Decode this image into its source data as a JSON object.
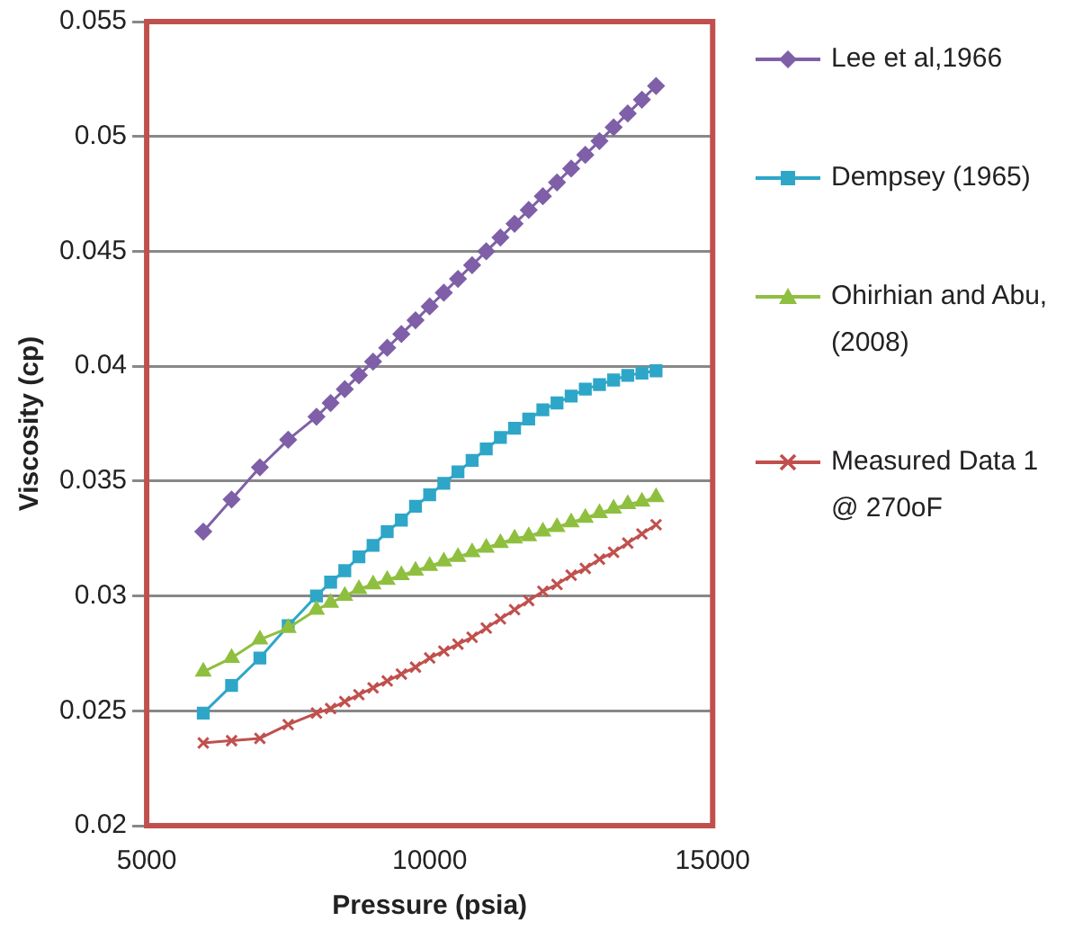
{
  "chart_data": {
    "type": "line",
    "xlabel": "Pressure (psia)",
    "ylabel": "Viscosity (cp)",
    "x": [
      6000,
      6500,
      7000,
      7500,
      8000,
      8250,
      8500,
      8750,
      9000,
      9250,
      9500,
      9750,
      10000,
      10250,
      10500,
      10750,
      11000,
      11250,
      11500,
      11750,
      12000,
      12250,
      12500,
      12750,
      13000,
      13250,
      13500,
      13750,
      14000
    ],
    "series": [
      {
        "name": "Lee et al,1966",
        "color": "#7f5fa8",
        "marker": "diamond",
        "values": [
          0.0328,
          0.0342,
          0.0356,
          0.0368,
          0.0378,
          0.0384,
          0.039,
          0.0396,
          0.0402,
          0.0408,
          0.0414,
          0.042,
          0.0426,
          0.0432,
          0.0438,
          0.0444,
          0.045,
          0.0456,
          0.0462,
          0.0468,
          0.0474,
          0.048,
          0.0486,
          0.0492,
          0.0498,
          0.0504,
          0.051,
          0.0516,
          0.0522
        ]
      },
      {
        "name": "Dempsey (1965)",
        "color": "#2ea6c8",
        "marker": "square",
        "values": [
          0.0249,
          0.0261,
          0.0273,
          0.0287,
          0.03,
          0.0306,
          0.0311,
          0.0317,
          0.0322,
          0.0328,
          0.0333,
          0.0339,
          0.0344,
          0.0349,
          0.0354,
          0.0359,
          0.0364,
          0.0369,
          0.0373,
          0.0377,
          0.0381,
          0.0384,
          0.0387,
          0.039,
          0.0392,
          0.0394,
          0.0396,
          0.0397,
          0.0398
        ]
      },
      {
        "name": "Ohirhian and Abu, (2008)",
        "color": "#8fbf3f",
        "marker": "triangle",
        "values": [
          0.0267,
          0.0273,
          0.0281,
          0.0286,
          0.0294,
          0.0297,
          0.03,
          0.0303,
          0.0305,
          0.0307,
          0.0309,
          0.0311,
          0.0313,
          0.0315,
          0.0317,
          0.0319,
          0.0321,
          0.0323,
          0.0325,
          0.0326,
          0.0328,
          0.033,
          0.0332,
          0.0334,
          0.0336,
          0.0338,
          0.034,
          0.0341,
          0.0343
        ]
      },
      {
        "name": "Measured Data 1 @ 270oF",
        "color": "#c0504d",
        "marker": "cross",
        "values": [
          0.0236,
          0.0237,
          0.0238,
          0.0244,
          0.0249,
          0.0251,
          0.0254,
          0.0257,
          0.026,
          0.0263,
          0.0266,
          0.0269,
          0.0273,
          0.0276,
          0.0279,
          0.0282,
          0.0286,
          0.029,
          0.0294,
          0.0298,
          0.0302,
          0.0305,
          0.0309,
          0.0312,
          0.0316,
          0.0319,
          0.0323,
          0.0327,
          0.0331
        ]
      }
    ],
    "xlim": [
      5000,
      15000
    ],
    "xticks": [
      5000,
      10000,
      15000
    ],
    "ylim": [
      0.02,
      0.055
    ],
    "yticks": [
      0.02,
      0.025,
      0.03,
      0.035,
      0.04,
      0.045,
      0.05,
      0.055
    ],
    "grid": "y",
    "legend": "right"
  }
}
